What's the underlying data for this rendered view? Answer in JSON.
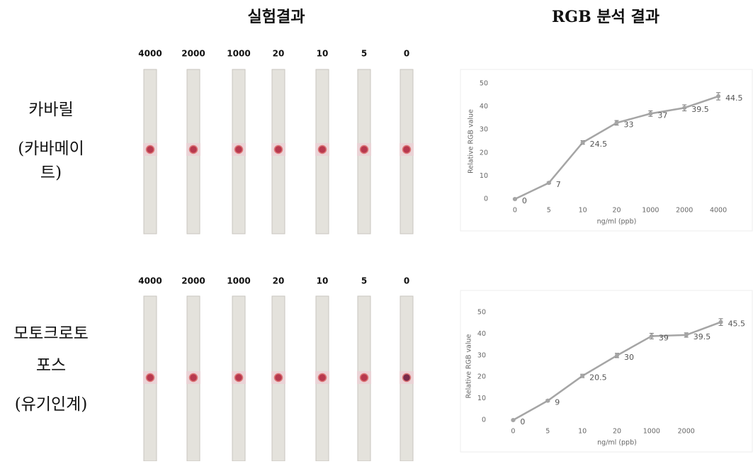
{
  "headers": [
    "실험결과",
    "RGB 분석 결과"
  ],
  "rows": [
    {
      "label": [
        "카바릴",
        "(카바메이",
        "트)"
      ],
      "strip_labels": [
        "4000",
        "2000",
        "1000",
        "20",
        "10",
        "5",
        "0"
      ]
    },
    {
      "label": [
        "모토크로토",
        "포스",
        "(유기인계)"
      ],
      "strip_labels": [
        "4000",
        "2000",
        "1000",
        "20",
        "10",
        "5",
        "0"
      ]
    }
  ],
  "chart_data": [
    {
      "type": "line",
      "y_label": "Relative RGB value",
      "x_label": "ng/ml (ppb)",
      "categories": [
        "0",
        "5",
        "10",
        "20",
        "1000",
        "2000",
        "4000"
      ],
      "series": [
        {
          "color": "#a5a5a5",
          "values": [
            0,
            7,
            24.5,
            33,
            37,
            39.5,
            44.5
          ],
          "errors": [
            0.3,
            0.4,
            0.8,
            1,
            1.2,
            1.3,
            1.6
          ]
        }
      ],
      "ylim": [
        0,
        50
      ],
      "yticks": [
        0,
        10,
        20,
        30,
        40,
        50
      ],
      "grid": false
    },
    {
      "type": "line",
      "y_label": "Relative RGB value",
      "x_label": "ng/ml (ppb)",
      "categories": [
        "0",
        "5",
        "10",
        "20",
        "1000",
        "2000",
        null
      ],
      "series": [
        {
          "color": "#a5a5a5",
          "values": [
            0,
            9,
            20.5,
            30,
            39,
            39.5,
            45.5
          ],
          "errors": [
            0.3,
            0.4,
            0.8,
            1,
            1.3,
            1,
            1.6
          ]
        }
      ],
      "ylim": [
        0,
        50
      ],
      "yticks": [
        0,
        10,
        20,
        30,
        40,
        50
      ],
      "grid": false
    }
  ]
}
